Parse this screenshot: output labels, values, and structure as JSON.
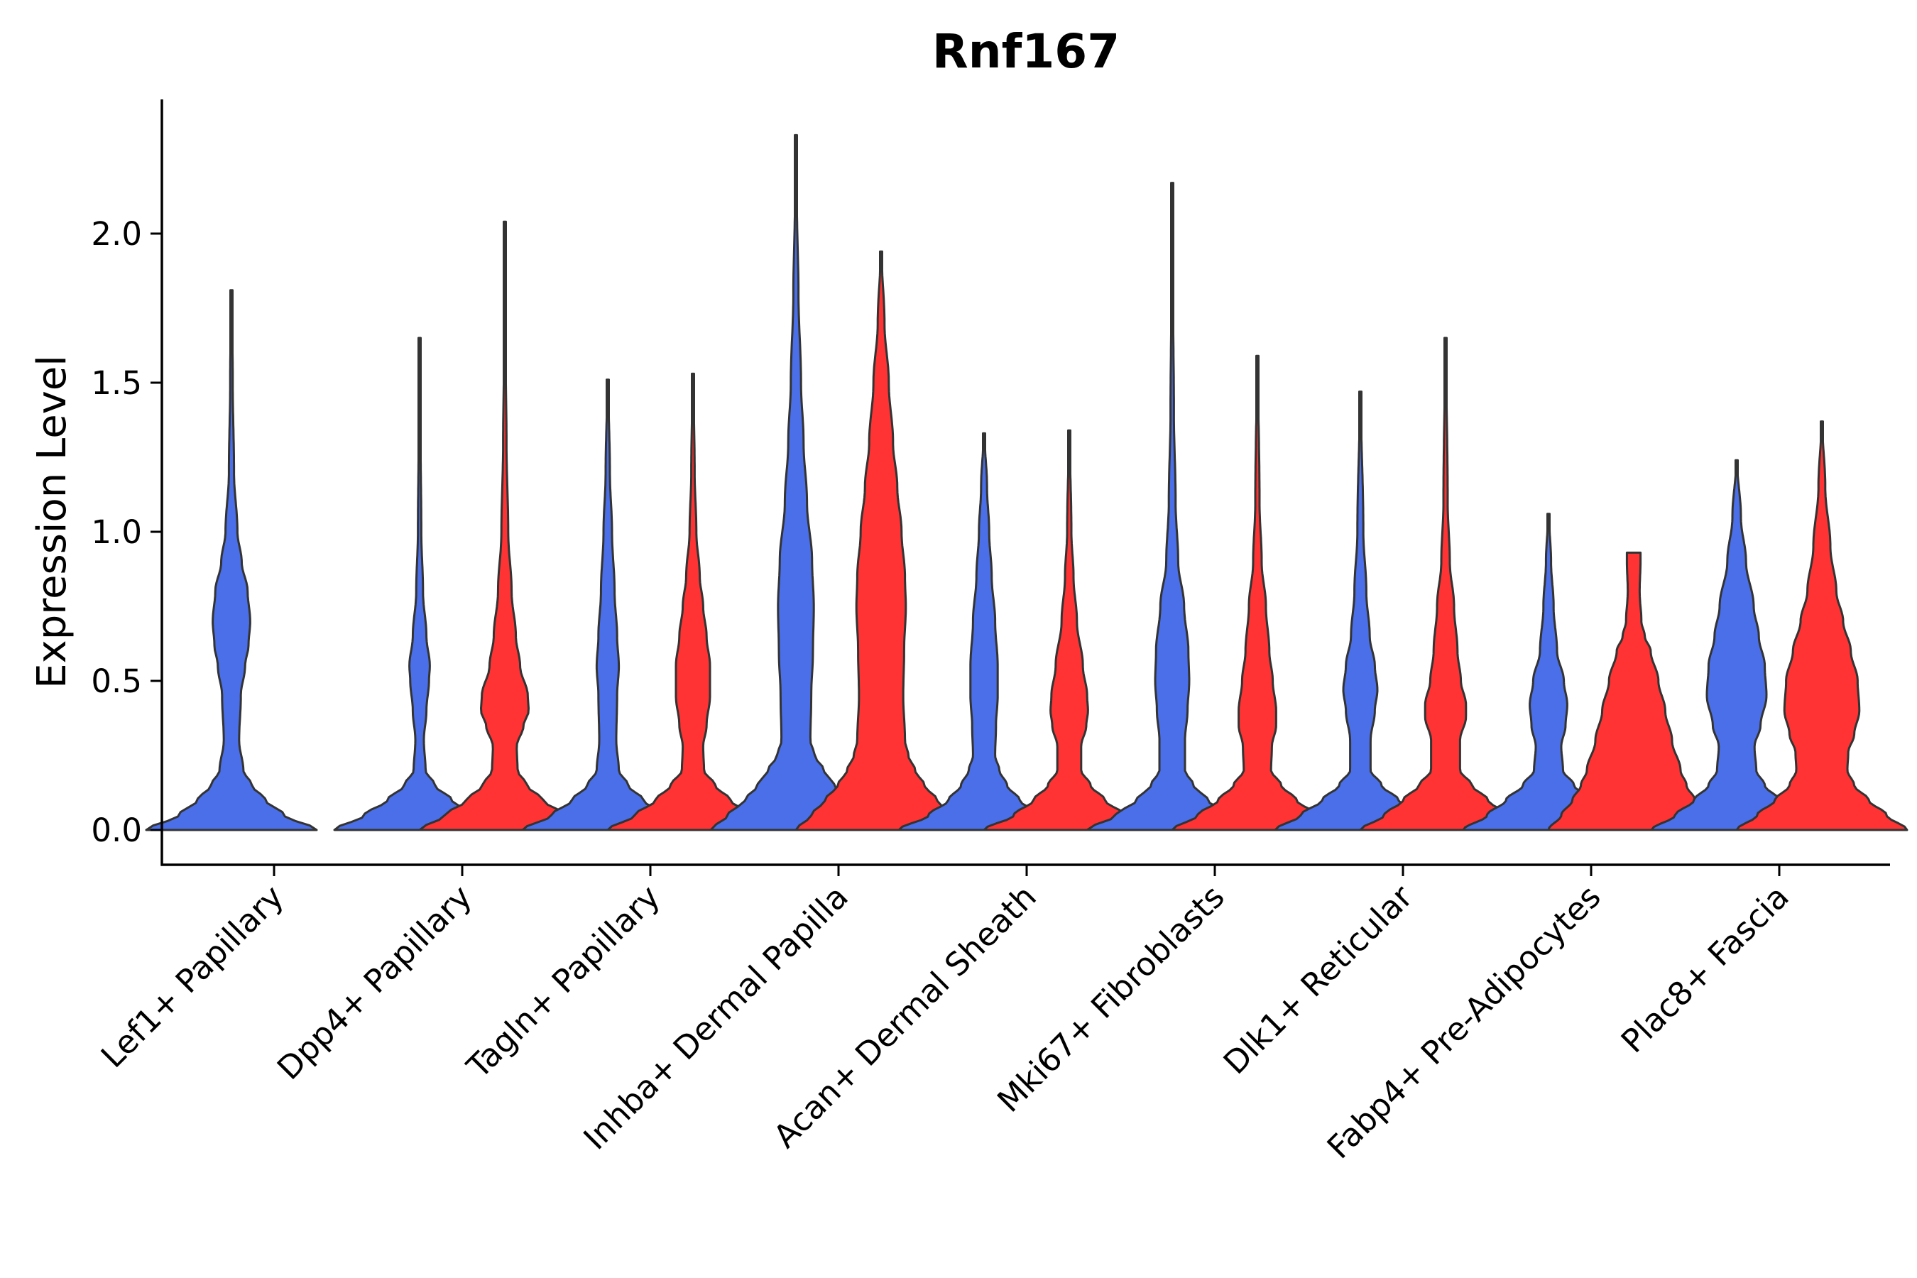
{
  "chart_data": {
    "type": "violin",
    "title": "Rnf167",
    "xlabel": "",
    "ylabel": "Expression Level",
    "ylim": [
      -0.12,
      2.45
    ],
    "yticks": [
      0.0,
      0.5,
      1.0,
      1.5,
      2.0
    ],
    "ytick_labels": [
      "0.0",
      "0.5",
      "1.0",
      "1.5",
      "2.0"
    ],
    "grid": false,
    "legend": "none",
    "series": [
      {
        "name": "blue group",
        "color": "#4A6FE8"
      },
      {
        "name": "red group",
        "color": "#FF3333"
      }
    ],
    "categories": [
      "Lef1+ Papillary",
      "Dpp4+ Papillary",
      "Tagln+ Papillary",
      "Inhba+ Dermal Papilla",
      "Acan+ Dermal Sheath",
      "Mki67+ Fibroblasts",
      "Dlk1+ Reticular",
      "Fabp4+ Pre-Adipocytes",
      "Plac8+ Fascia"
    ],
    "violins": [
      {
        "category": "Lef1+ Papillary",
        "group": 0,
        "max": 1.81,
        "profile": [
          [
            0,
            1.0
          ],
          [
            0.05,
            0.62
          ],
          [
            0.1,
            0.4
          ],
          [
            0.15,
            0.24
          ],
          [
            0.2,
            0.14
          ],
          [
            0.3,
            0.09
          ],
          [
            0.45,
            0.11
          ],
          [
            0.55,
            0.16
          ],
          [
            0.62,
            0.2
          ],
          [
            0.7,
            0.22
          ],
          [
            0.8,
            0.19
          ],
          [
            0.9,
            0.12
          ],
          [
            1.0,
            0.07
          ],
          [
            1.2,
            0.03
          ],
          [
            1.5,
            0.015
          ],
          [
            1.81,
            0.005
          ]
        ]
      },
      {
        "category": "Dpp4+ Papillary",
        "group": 0,
        "max": 1.65,
        "profile": [
          [
            0,
            1.0
          ],
          [
            0.05,
            0.65
          ],
          [
            0.1,
            0.38
          ],
          [
            0.15,
            0.18
          ],
          [
            0.2,
            0.07
          ],
          [
            0.3,
            0.05
          ],
          [
            0.4,
            0.08
          ],
          [
            0.5,
            0.11
          ],
          [
            0.55,
            0.12
          ],
          [
            0.65,
            0.08
          ],
          [
            0.8,
            0.04
          ],
          [
            1.0,
            0.02
          ],
          [
            1.3,
            0.012
          ],
          [
            1.65,
            0.005
          ]
        ]
      },
      {
        "category": "Dpp4+ Papillary",
        "group": 1,
        "max": 2.04,
        "profile": [
          [
            0,
            1.0
          ],
          [
            0.05,
            0.7
          ],
          [
            0.1,
            0.45
          ],
          [
            0.15,
            0.26
          ],
          [
            0.2,
            0.15
          ],
          [
            0.28,
            0.14
          ],
          [
            0.35,
            0.22
          ],
          [
            0.4,
            0.28
          ],
          [
            0.45,
            0.27
          ],
          [
            0.55,
            0.18
          ],
          [
            0.65,
            0.13
          ],
          [
            0.8,
            0.08
          ],
          [
            1.0,
            0.04
          ],
          [
            1.3,
            0.02
          ],
          [
            1.6,
            0.01
          ],
          [
            2.04,
            0.005
          ]
        ]
      },
      {
        "category": "Tagln+ Papillary",
        "group": 0,
        "max": 1.51,
        "profile": [
          [
            0,
            1.0
          ],
          [
            0.05,
            0.66
          ],
          [
            0.1,
            0.42
          ],
          [
            0.15,
            0.24
          ],
          [
            0.2,
            0.13
          ],
          [
            0.3,
            0.1
          ],
          [
            0.45,
            0.11
          ],
          [
            0.55,
            0.13
          ],
          [
            0.65,
            0.11
          ],
          [
            0.8,
            0.08
          ],
          [
            1.0,
            0.05
          ],
          [
            1.2,
            0.025
          ],
          [
            1.51,
            0.005
          ]
        ]
      },
      {
        "category": "Tagln+ Papillary",
        "group": 1,
        "max": 1.53,
        "profile": [
          [
            0,
            1.0
          ],
          [
            0.05,
            0.68
          ],
          [
            0.1,
            0.44
          ],
          [
            0.15,
            0.26
          ],
          [
            0.2,
            0.13
          ],
          [
            0.28,
            0.12
          ],
          [
            0.35,
            0.16
          ],
          [
            0.45,
            0.2
          ],
          [
            0.55,
            0.2
          ],
          [
            0.65,
            0.16
          ],
          [
            0.75,
            0.12
          ],
          [
            0.85,
            0.08
          ],
          [
            1.0,
            0.04
          ],
          [
            1.2,
            0.02
          ],
          [
            1.53,
            0.005
          ]
        ]
      },
      {
        "category": "Inhba+ Dermal Papilla",
        "group": 0,
        "max": 2.33,
        "profile": [
          [
            0,
            1.0
          ],
          [
            0.05,
            0.8
          ],
          [
            0.1,
            0.6
          ],
          [
            0.15,
            0.45
          ],
          [
            0.2,
            0.33
          ],
          [
            0.25,
            0.22
          ],
          [
            0.3,
            0.17
          ],
          [
            0.45,
            0.18
          ],
          [
            0.6,
            0.2
          ],
          [
            0.75,
            0.21
          ],
          [
            0.9,
            0.19
          ],
          [
            1.1,
            0.13
          ],
          [
            1.3,
            0.09
          ],
          [
            1.5,
            0.06
          ],
          [
            1.8,
            0.03
          ],
          [
            2.1,
            0.012
          ],
          [
            2.33,
            0.005
          ]
        ]
      },
      {
        "category": "Inhba+ Dermal Papilla",
        "group": 1,
        "max": 1.94,
        "profile": [
          [
            0,
            1.0
          ],
          [
            0.05,
            0.82
          ],
          [
            0.1,
            0.66
          ],
          [
            0.15,
            0.51
          ],
          [
            0.2,
            0.4
          ],
          [
            0.25,
            0.32
          ],
          [
            0.3,
            0.28
          ],
          [
            0.45,
            0.26
          ],
          [
            0.6,
            0.27
          ],
          [
            0.75,
            0.29
          ],
          [
            0.85,
            0.28
          ],
          [
            1.0,
            0.24
          ],
          [
            1.15,
            0.19
          ],
          [
            1.3,
            0.14
          ],
          [
            1.5,
            0.09
          ],
          [
            1.7,
            0.04
          ],
          [
            1.94,
            0.005
          ]
        ]
      },
      {
        "category": "Acan+ Dermal Sheath",
        "group": 0,
        "max": 1.33,
        "profile": [
          [
            0,
            1.0
          ],
          [
            0.05,
            0.65
          ],
          [
            0.1,
            0.42
          ],
          [
            0.15,
            0.27
          ],
          [
            0.2,
            0.18
          ],
          [
            0.25,
            0.13
          ],
          [
            0.35,
            0.14
          ],
          [
            0.45,
            0.16
          ],
          [
            0.55,
            0.16
          ],
          [
            0.7,
            0.13
          ],
          [
            0.85,
            0.09
          ],
          [
            1.0,
            0.06
          ],
          [
            1.15,
            0.035
          ],
          [
            1.33,
            0.005
          ]
        ]
      },
      {
        "category": "Acan+ Dermal Sheath",
        "group": 1,
        "max": 1.34,
        "profile": [
          [
            0,
            1.0
          ],
          [
            0.05,
            0.65
          ],
          [
            0.1,
            0.42
          ],
          [
            0.15,
            0.25
          ],
          [
            0.2,
            0.14
          ],
          [
            0.28,
            0.14
          ],
          [
            0.35,
            0.2
          ],
          [
            0.4,
            0.22
          ],
          [
            0.45,
            0.21
          ],
          [
            0.55,
            0.16
          ],
          [
            0.7,
            0.09
          ],
          [
            0.85,
            0.05
          ],
          [
            1.0,
            0.025
          ],
          [
            1.34,
            0.005
          ]
        ]
      },
      {
        "category": "Mki67+ Fibroblasts",
        "group": 0,
        "max": 2.17,
        "profile": [
          [
            0,
            1.0
          ],
          [
            0.05,
            0.66
          ],
          [
            0.1,
            0.42
          ],
          [
            0.15,
            0.25
          ],
          [
            0.2,
            0.15
          ],
          [
            0.3,
            0.15
          ],
          [
            0.4,
            0.18
          ],
          [
            0.5,
            0.2
          ],
          [
            0.6,
            0.19
          ],
          [
            0.75,
            0.14
          ],
          [
            0.9,
            0.07
          ],
          [
            1.1,
            0.04
          ],
          [
            1.4,
            0.02
          ],
          [
            1.8,
            0.01
          ],
          [
            2.17,
            0.005
          ]
        ]
      },
      {
        "category": "Mki67+ Fibroblasts",
        "group": 1,
        "max": 1.59,
        "profile": [
          [
            0,
            1.0
          ],
          [
            0.05,
            0.7
          ],
          [
            0.1,
            0.46
          ],
          [
            0.15,
            0.28
          ],
          [
            0.2,
            0.16
          ],
          [
            0.28,
            0.17
          ],
          [
            0.35,
            0.22
          ],
          [
            0.4,
            0.22
          ],
          [
            0.5,
            0.18
          ],
          [
            0.6,
            0.14
          ],
          [
            0.75,
            0.1
          ],
          [
            0.9,
            0.05
          ],
          [
            1.1,
            0.025
          ],
          [
            1.59,
            0.005
          ]
        ]
      },
      {
        "category": "Dlk1+ Reticular",
        "group": 0,
        "max": 1.47,
        "profile": [
          [
            0,
            1.0
          ],
          [
            0.05,
            0.7
          ],
          [
            0.1,
            0.45
          ],
          [
            0.15,
            0.25
          ],
          [
            0.2,
            0.12
          ],
          [
            0.3,
            0.12
          ],
          [
            0.4,
            0.17
          ],
          [
            0.47,
            0.2
          ],
          [
            0.55,
            0.17
          ],
          [
            0.65,
            0.11
          ],
          [
            0.8,
            0.07
          ],
          [
            1.0,
            0.035
          ],
          [
            1.47,
            0.005
          ]
        ]
      },
      {
        "category": "Dlk1+ Reticular",
        "group": 1,
        "max": 1.65,
        "profile": [
          [
            0,
            1.0
          ],
          [
            0.05,
            0.72
          ],
          [
            0.1,
            0.5
          ],
          [
            0.15,
            0.31
          ],
          [
            0.2,
            0.17
          ],
          [
            0.3,
            0.17
          ],
          [
            0.38,
            0.24
          ],
          [
            0.42,
            0.24
          ],
          [
            0.5,
            0.18
          ],
          [
            0.6,
            0.14
          ],
          [
            0.75,
            0.1
          ],
          [
            0.9,
            0.05
          ],
          [
            1.1,
            0.025
          ],
          [
            1.65,
            0.005
          ]
        ]
      },
      {
        "category": "Fabp4+ Pre-Adipocytes",
        "group": 0,
        "max": 1.06,
        "profile": [
          [
            0,
            1.0
          ],
          [
            0.05,
            0.72
          ],
          [
            0.1,
            0.5
          ],
          [
            0.15,
            0.3
          ],
          [
            0.2,
            0.17
          ],
          [
            0.28,
            0.15
          ],
          [
            0.35,
            0.2
          ],
          [
            0.42,
            0.22
          ],
          [
            0.5,
            0.18
          ],
          [
            0.6,
            0.1
          ],
          [
            0.75,
            0.06
          ],
          [
            0.9,
            0.03
          ],
          [
            1.06,
            0.005
          ]
        ]
      },
      {
        "category": "Fabp4+ Pre-Adipocytes",
        "group": 1,
        "max": 0.93,
        "profile": [
          [
            0,
            1.0
          ],
          [
            0.05,
            0.85
          ],
          [
            0.1,
            0.72
          ],
          [
            0.15,
            0.62
          ],
          [
            0.2,
            0.55
          ],
          [
            0.3,
            0.45
          ],
          [
            0.4,
            0.37
          ],
          [
            0.5,
            0.29
          ],
          [
            0.6,
            0.2
          ],
          [
            0.65,
            0.13
          ],
          [
            0.7,
            0.09
          ],
          [
            0.8,
            0.07
          ],
          [
            0.9,
            0.08
          ],
          [
            0.93,
            0.08
          ]
        ]
      },
      {
        "category": "Plac8+ Fascia",
        "group": 0,
        "max": 1.24,
        "profile": [
          [
            0,
            1.0
          ],
          [
            0.05,
            0.72
          ],
          [
            0.1,
            0.5
          ],
          [
            0.15,
            0.33
          ],
          [
            0.2,
            0.23
          ],
          [
            0.28,
            0.21
          ],
          [
            0.35,
            0.28
          ],
          [
            0.45,
            0.35
          ],
          [
            0.55,
            0.33
          ],
          [
            0.65,
            0.26
          ],
          [
            0.75,
            0.2
          ],
          [
            0.9,
            0.11
          ],
          [
            1.05,
            0.05
          ],
          [
            1.24,
            0.005
          ]
        ]
      },
      {
        "category": "Plac8+ Fascia",
        "group": 1,
        "max": 1.37,
        "profile": [
          [
            0,
            1.0
          ],
          [
            0.05,
            0.76
          ],
          [
            0.1,
            0.55
          ],
          [
            0.15,
            0.38
          ],
          [
            0.2,
            0.3
          ],
          [
            0.26,
            0.31
          ],
          [
            0.32,
            0.38
          ],
          [
            0.4,
            0.44
          ],
          [
            0.5,
            0.42
          ],
          [
            0.6,
            0.34
          ],
          [
            0.7,
            0.25
          ],
          [
            0.8,
            0.17
          ],
          [
            0.95,
            0.1
          ],
          [
            1.15,
            0.04
          ],
          [
            1.37,
            0.005
          ]
        ]
      }
    ]
  }
}
